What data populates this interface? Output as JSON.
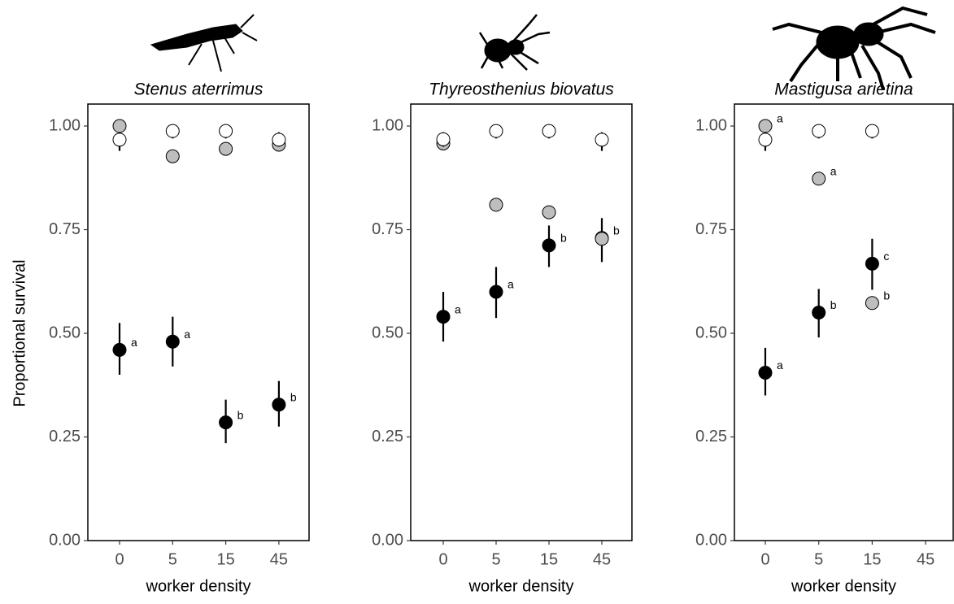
{
  "chart_data": [
    {
      "type": "dot",
      "title": "Stenus aterrimus",
      "xlabel": "worker density",
      "ylabel": "Proportional survival",
      "categories": [
        "0",
        "5",
        "15",
        "45"
      ],
      "ylim": [
        0,
        1.053
      ],
      "yticks": [
        {
          "value": 0,
          "label": "0.00"
        },
        {
          "value": 0.25,
          "label": "0.25"
        },
        {
          "value": 0.5,
          "label": "0.50"
        },
        {
          "value": 0.75,
          "label": "0.75"
        },
        {
          "value": 1,
          "label": "1.00"
        }
      ],
      "series": [
        {
          "color": "#000000",
          "values": [
            0.46,
            0.48,
            0.285,
            0.328
          ],
          "lower": [
            0.4,
            0.42,
            0.235,
            0.275
          ],
          "upper": [
            0.525,
            0.54,
            0.34,
            0.385
          ],
          "value_labels": [
            "a",
            "a",
            "b",
            "b"
          ]
        },
        {
          "color": "#bebebe",
          "values": [
            1.0,
            0.927,
            0.945,
            0.955
          ]
        },
        {
          "color": "#ffffff",
          "values": [
            0.967,
            0.988,
            0.988,
            0.967
          ],
          "lower": [
            0.94,
            0.97,
            0.97,
            0.95
          ],
          "upper": [
            0.985,
            0.995,
            0.995,
            0.985
          ]
        }
      ]
    },
    {
      "type": "dot",
      "title": "Thyreosthenius biovatus",
      "xlabel": "worker density",
      "categories": [
        "0",
        "5",
        "15",
        "45"
      ],
      "ylim": [
        0,
        1.053
      ],
      "yticks": [
        {
          "value": 0,
          "label": "0.00"
        },
        {
          "value": 0.25,
          "label": "0.25"
        },
        {
          "value": 0.5,
          "label": "0.50"
        },
        {
          "value": 0.75,
          "label": "0.75"
        },
        {
          "value": 1,
          "label": "1.00"
        }
      ],
      "series": [
        {
          "color": "#000000",
          "values": [
            0.54,
            0.6,
            0.712,
            0.73
          ],
          "lower": [
            0.48,
            0.537,
            0.66,
            0.672
          ],
          "upper": [
            0.6,
            0.66,
            0.76,
            0.778
          ],
          "value_labels": [
            "a",
            "a",
            "b",
            "b"
          ]
        },
        {
          "color": "#bebebe",
          "values": [
            0.958,
            0.81,
            0.792,
            0.728
          ]
        },
        {
          "color": "#ffffff",
          "values": [
            0.968,
            0.988,
            0.988,
            0.967
          ],
          "lower": [
            0.95,
            0.97,
            0.97,
            0.94
          ],
          "upper": [
            0.985,
            0.995,
            0.995,
            0.985
          ]
        }
      ]
    },
    {
      "type": "dot",
      "title": "Mastigusa arietina",
      "xlabel": "worker density",
      "categories": [
        "0",
        "5",
        "15",
        "45"
      ],
      "ylim": [
        0,
        1.053
      ],
      "yticks": [
        {
          "value": 0,
          "label": "0.00"
        },
        {
          "value": 0.25,
          "label": "0.25"
        },
        {
          "value": 0.5,
          "label": "0.50"
        },
        {
          "value": 0.75,
          "label": "0.75"
        },
        {
          "value": 1,
          "label": "1.00"
        }
      ],
      "series": [
        {
          "color": "#000000",
          "values": [
            0.405,
            0.55,
            0.668,
            null
          ],
          "lower": [
            0.35,
            0.49,
            0.605,
            null
          ],
          "upper": [
            0.465,
            0.607,
            0.728,
            null
          ],
          "value_labels": [
            "a",
            "b",
            "c",
            null
          ]
        },
        {
          "color": "#bebebe",
          "values": [
            1.0,
            0.873,
            0.573,
            null
          ],
          "value_labels": [
            "a",
            "a",
            "b",
            null
          ]
        },
        {
          "color": "#ffffff",
          "values": [
            0.967,
            0.988,
            0.988,
            null
          ],
          "lower": [
            0.94,
            0.97,
            0.97,
            null
          ],
          "upper": [
            0.985,
            0.995,
            0.995,
            null
          ]
        }
      ]
    }
  ]
}
